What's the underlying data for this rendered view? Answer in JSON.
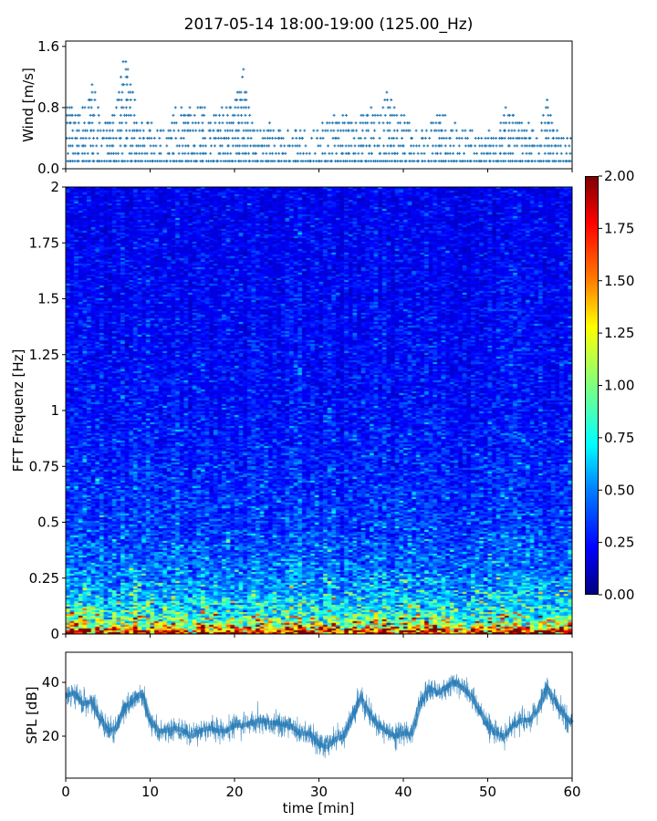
{
  "chart_data": [
    {
      "type": "scatter",
      "title": "2017-05-14 18:00-19:00 (125.00_Hz)",
      "ylabel": "Wind [m/s]",
      "xlim": [
        0,
        60
      ],
      "ylim": [
        0,
        1.67
      ],
      "yticks": [
        "0.0",
        "0.8",
        "1.6"
      ],
      "ytick_values": [
        0,
        0.8,
        1.6
      ],
      "marker": "+",
      "color": "#1f77b4",
      "resolution": 0.1,
      "minutes": [
        0,
        1,
        2,
        3,
        4,
        5,
        6,
        7,
        8,
        9,
        10,
        11,
        12,
        13,
        14,
        15,
        16,
        17,
        18,
        19,
        20,
        21,
        22,
        23,
        24,
        25,
        26,
        27,
        28,
        29,
        30,
        31,
        32,
        33,
        34,
        35,
        36,
        37,
        38,
        39,
        40,
        41,
        42,
        43,
        44,
        45,
        46,
        47,
        48,
        49,
        50,
        51,
        52,
        53,
        54,
        55,
        56,
        57,
        58,
        59,
        60
      ],
      "max_wind": [
        0.9,
        0.7,
        0.8,
        1.1,
        0.7,
        0.6,
        0.9,
        1.6,
        0.9,
        0.6,
        0.6,
        0.5,
        0.6,
        0.8,
        0.9,
        0.7,
        0.9,
        0.6,
        0.8,
        0.8,
        0.9,
        1.3,
        0.6,
        0.5,
        0.6,
        0.5,
        0.5,
        0.5,
        0.6,
        0.5,
        0.6,
        0.6,
        0.8,
        0.7,
        0.6,
        0.7,
        0.8,
        0.7,
        1.0,
        0.8,
        0.7,
        0.5,
        0.5,
        0.6,
        0.7,
        0.7,
        0.6,
        0.5,
        0.5,
        0.4,
        0.5,
        0.4,
        0.8,
        0.7,
        0.6,
        0.6,
        0.5,
        0.9,
        0.5,
        0.4,
        0.4
      ]
    },
    {
      "type": "heatmap",
      "ylabel": "FFT Frequenz [Hz]",
      "xlim": [
        0,
        60
      ],
      "ylim": [
        0,
        2
      ],
      "yticks": [
        "0",
        "0.25",
        "0.5",
        "0.75",
        "1",
        "1.25",
        "1.5",
        "1.75",
        "2"
      ],
      "ytick_values": [
        0,
        0.25,
        0.5,
        0.75,
        1,
        1.25,
        1.5,
        1.75,
        2
      ],
      "band_freq": [
        0,
        0.04,
        0.1,
        0.2,
        0.3,
        0.5,
        1.0,
        2.0
      ],
      "band_mean": [
        1.9,
        1.1,
        0.75,
        0.55,
        0.45,
        0.35,
        0.27,
        0.22
      ],
      "colorbar": {
        "range": [
          0,
          2
        ],
        "ticks": [
          "0.00",
          "0.25",
          "0.50",
          "0.75",
          "1.00",
          "1.25",
          "1.50",
          "1.75",
          "2.00"
        ],
        "tick_values": [
          0,
          0.25,
          0.5,
          0.75,
          1,
          1.25,
          1.5,
          1.75,
          2
        ],
        "colormap": "jet"
      }
    },
    {
      "type": "line",
      "ylabel": "SPL [dB]",
      "xlabel": "time [min]",
      "xlim": [
        0,
        60
      ],
      "ylim": [
        4.4,
        51.2
      ],
      "color": "#1f77b4",
      "yticks": [
        "20",
        "40"
      ],
      "ytick_values": [
        20,
        40
      ],
      "xticks": [
        "0",
        "10",
        "20",
        "30",
        "40",
        "50",
        "60"
      ],
      "xtick_values": [
        0,
        10,
        20,
        30,
        40,
        50,
        60
      ],
      "minutes": [
        0,
        1,
        2,
        3,
        4,
        5,
        6,
        7,
        8,
        9,
        10,
        11,
        12,
        13,
        14,
        15,
        16,
        17,
        18,
        19,
        20,
        21,
        22,
        23,
        24,
        25,
        26,
        27,
        28,
        29,
        30,
        31,
        32,
        33,
        34,
        35,
        36,
        37,
        38,
        39,
        40,
        41,
        42,
        43,
        44,
        45,
        46,
        47,
        48,
        49,
        50,
        51,
        52,
        53,
        54,
        55,
        56,
        57,
        58,
        59,
        60
      ],
      "spl_db": [
        35,
        36,
        32,
        33,
        27,
        22,
        23,
        31,
        33,
        36,
        26,
        22,
        22,
        23,
        22,
        20,
        22,
        23,
        22,
        22,
        24,
        24,
        25,
        26,
        25,
        25,
        24,
        23,
        21,
        21,
        17,
        16,
        19,
        20,
        28,
        34,
        28,
        24,
        22,
        20,
        21,
        21,
        32,
        38,
        36,
        38,
        40,
        38,
        35,
        30,
        24,
        21,
        20,
        24,
        26,
        26,
        30,
        38,
        33,
        28,
        25
      ]
    }
  ]
}
